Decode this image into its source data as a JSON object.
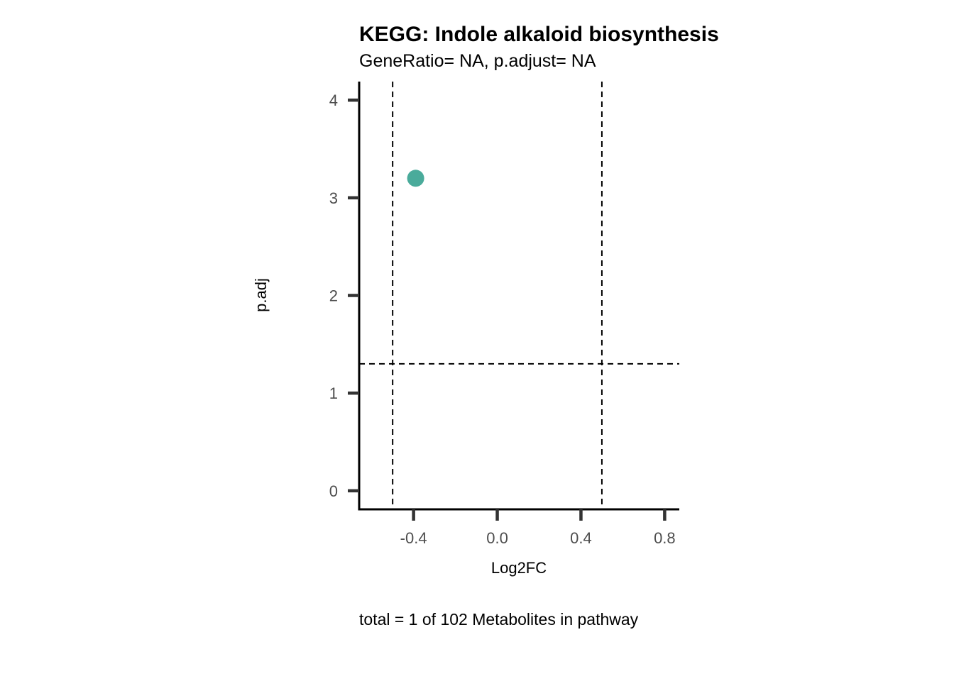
{
  "chart_data": {
    "type": "scatter",
    "title": "KEGG: Indole alkaloid biosynthesis",
    "subtitle": "GeneRatio= NA, p.adjust= NA",
    "xlabel": "Log2FC",
    "ylabel": "p.adj",
    "caption": "total = 1 of 102 Metabolites in pathway",
    "xlim": [
      -0.66,
      0.87
    ],
    "ylim": [
      -0.19,
      4.19
    ],
    "x_ticks": [
      -0.4,
      0.0,
      0.4,
      0.8
    ],
    "x_tick_labels": [
      "-0.4",
      "0.0",
      "0.4",
      "0.8"
    ],
    "y_ticks": [
      0,
      1,
      2,
      3,
      4
    ],
    "y_tick_labels": [
      "0",
      "1",
      "2",
      "3",
      "4"
    ],
    "grid": false,
    "legend": "none",
    "points": [
      {
        "x": -0.39,
        "y": 3.2,
        "color": "#4aab9b"
      }
    ],
    "reference_lines": {
      "vertical": [
        -0.5,
        0.5
      ],
      "horizontal": [
        1.3
      ],
      "style": "dashed"
    },
    "colors": {
      "point": "#4aab9b",
      "axis": "#000000",
      "tick": "#333333",
      "tick_label": "#4d4d4d"
    }
  }
}
